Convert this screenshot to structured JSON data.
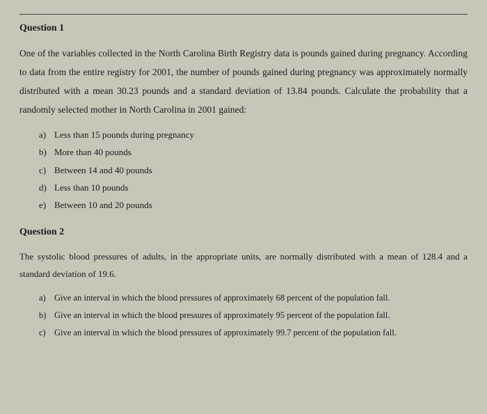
{
  "q1": {
    "heading": "Question 1",
    "body": "One of the variables collected in the North Carolina Birth Registry data is pounds gained during pregnancy. According to data from the entire registry for 2001, the number of pounds gained during pregnancy was approximately normally distributed with a mean 30.23 pounds and a standard deviation of 13.84 pounds. Calculate the probability that a randomly selected mother in North Carolina in 2001 gained:",
    "items": [
      {
        "label": "a)",
        "text": "Less than 15 pounds during pregnancy"
      },
      {
        "label": "b)",
        "text": "More than 40 pounds"
      },
      {
        "label": "c)",
        "text": "Between 14 and 40 pounds"
      },
      {
        "label": "d)",
        "text": "Less than 10 pounds"
      },
      {
        "label": "e)",
        "text": "Between 10 and 20 pounds"
      }
    ]
  },
  "q2": {
    "heading": "Question 2",
    "body": "The systolic blood pressures of adults, in the appropriate units, are normally distributed with a mean of 128.4 and a standard deviation of 19.6.",
    "items": [
      {
        "label": "a)",
        "text": "Give an interval in which the blood pressures of approximately 68 percent of the population fall."
      },
      {
        "label": "b)",
        "text": "Give an interval in which the blood pressures of approximately 95 percent of the population fall."
      },
      {
        "label": "c)",
        "text": "Give an interval in which the blood pressures of approximately 99.7 percent of the population fall."
      }
    ]
  }
}
